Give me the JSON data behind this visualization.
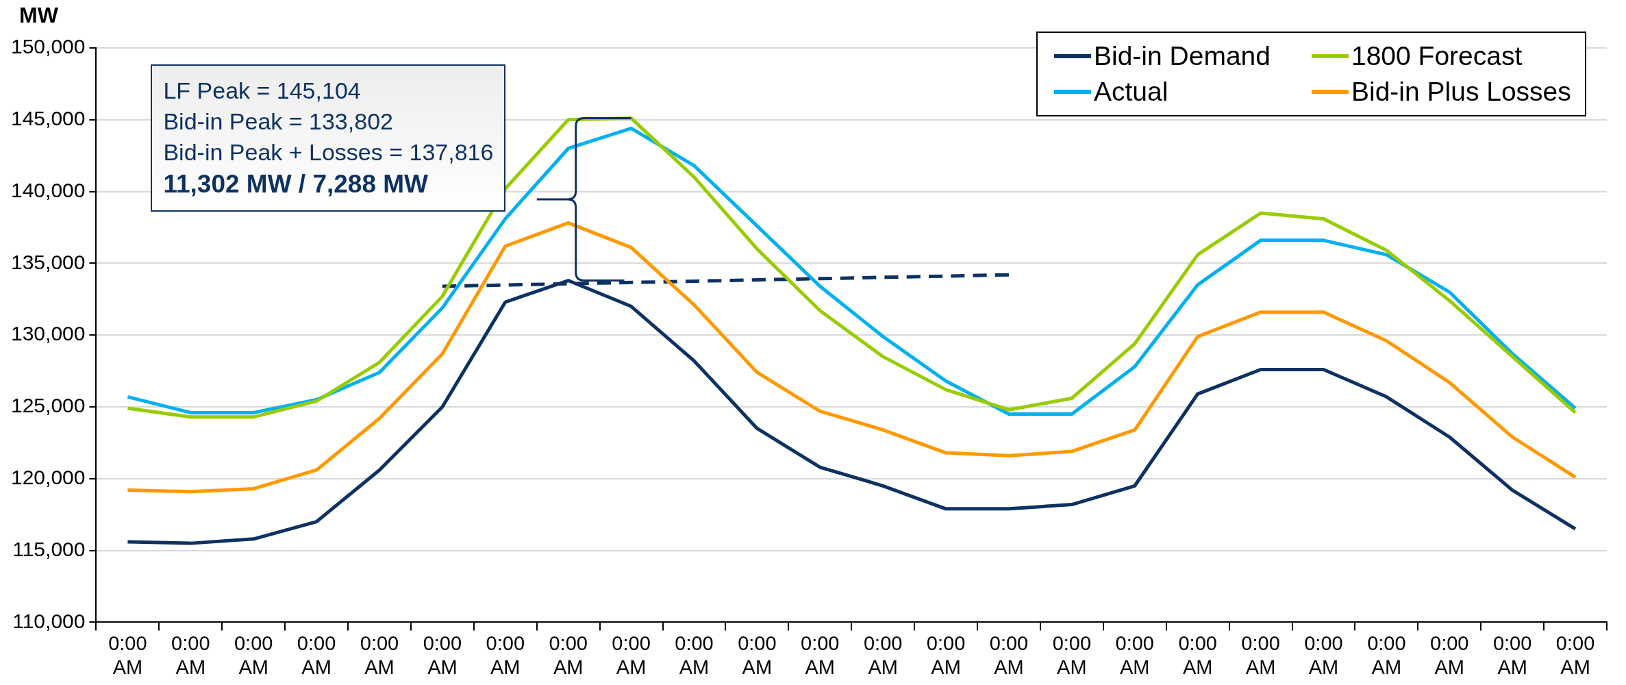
{
  "chart_data": {
    "type": "line",
    "ylabel": "MW",
    "categories": [
      "0:00 AM",
      "0:00 AM",
      "0:00 AM",
      "0:00 AM",
      "0:00 AM",
      "0:00 AM",
      "0:00 AM",
      "0:00 AM",
      "0:00 AM",
      "0:00 AM",
      "0:00 AM",
      "0:00 AM",
      "0:00 AM",
      "0:00 AM",
      "0:00 AM",
      "0:00 AM",
      "0:00 AM",
      "0:00 AM",
      "0:00 AM",
      "0:00 AM",
      "0:00 AM",
      "0:00 AM",
      "0:00 AM",
      "0:00 AM"
    ],
    "series": [
      {
        "name": "Bid-in Demand",
        "color": "#0d3262",
        "values": [
          115600,
          115500,
          115800,
          117000,
          120600,
          125000,
          132300,
          133802,
          132000,
          128200,
          123500,
          120800,
          119500,
          117900,
          117900,
          118200,
          119500,
          125900,
          127600,
          127600,
          125700,
          122900,
          119200,
          116500
        ]
      },
      {
        "name": "1800 Forecast",
        "color": "#99cc00",
        "values": [
          124900,
          124300,
          124300,
          125400,
          128100,
          132700,
          140200,
          145000,
          145104,
          141000,
          136000,
          131700,
          128500,
          126200,
          124800,
          125600,
          129400,
          135600,
          138500,
          138100,
          135900,
          132400,
          128500,
          124600
        ]
      },
      {
        "name": "Actual",
        "color": "#00b0f0",
        "values": [
          125700,
          124600,
          124600,
          125500,
          127400,
          131900,
          138100,
          143000,
          144400,
          141800,
          137600,
          133400,
          129900,
          126800,
          124500,
          124500,
          127800,
          133500,
          136600,
          136600,
          135600,
          133000,
          128700,
          124900
        ]
      },
      {
        "name": "Bid-in Plus Losses",
        "color": "#ff9900",
        "values": [
          119200,
          119100,
          119300,
          120600,
          124200,
          128700,
          136200,
          137816,
          136100,
          132100,
          127400,
          124700,
          123400,
          121800,
          121600,
          121900,
          123400,
          129900,
          131600,
          131600,
          129600,
          126700,
          122900,
          120100
        ]
      },
      {
        "type": "line",
        "color": "#0d3262",
        "line_style": "dashed",
        "values": [
          null,
          null,
          null,
          null,
          null,
          133400,
          null,
          null,
          null,
          null,
          null,
          null,
          null,
          null,
          134200,
          null,
          null,
          null,
          null,
          null,
          null,
          null,
          null,
          null
        ]
      }
    ],
    "ylim": [
      110000,
      150000
    ],
    "yticks": [
      {
        "value": 110000,
        "label": "110,000"
      },
      {
        "value": 115000,
        "label": "115,000"
      },
      {
        "value": 120000,
        "label": "120,000"
      },
      {
        "value": 125000,
        "label": "125,000"
      },
      {
        "value": 130000,
        "label": "130,000"
      },
      {
        "value": 135000,
        "label": "135,000"
      },
      {
        "value": 140000,
        "label": "140,000"
      },
      {
        "value": 145000,
        "label": "145,000"
      },
      {
        "value": 150000,
        "label": "150,000"
      }
    ],
    "grid": "y",
    "legend": "top right",
    "marker": "none",
    "line_style": "solid",
    "annotations": [
      "LF Peak = 145,104",
      "Bid-in Peak = 133,802",
      "Bid-in Peak + Losses = 137,816",
      "11,302 MW / 7,288 MW"
    ]
  }
}
